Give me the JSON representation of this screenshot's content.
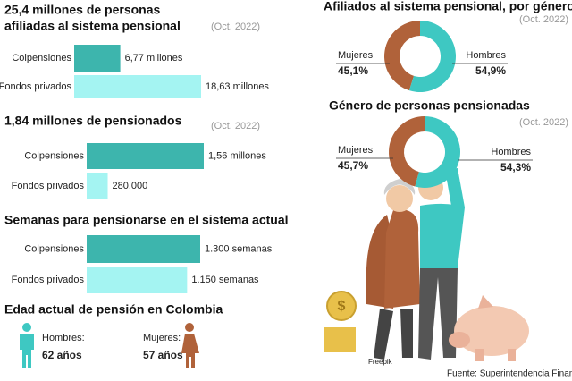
{
  "chart_data": [
    {
      "type": "bar",
      "title_lines": [
        "25,4 millones de personas",
        "afiliadas al sistema pensional"
      ],
      "note": "(Oct. 2022)",
      "categories": [
        "Colpensiones",
        "Fondos privados"
      ],
      "values": [
        6770000,
        18630000
      ],
      "value_labels": [
        "6,77 millones",
        "18,63 millones"
      ],
      "colors": [
        "#3db5ad",
        "#a4f4f2"
      ]
    },
    {
      "type": "bar",
      "title_lines": [
        "1,84 millones de pensionados"
      ],
      "note": "(Oct. 2022)",
      "categories": [
        "Colpensiones",
        "Fondos privados"
      ],
      "values": [
        1560000,
        280000
      ],
      "value_labels": [
        "1,56 millones",
        "280.000"
      ],
      "colors": [
        "#3db5ad",
        "#a4f4f2"
      ]
    },
    {
      "type": "bar",
      "title_lines": [
        "Semanas para pensionarse en el sistema actual"
      ],
      "categories": [
        "Colpensiones",
        "Fondos privados"
      ],
      "values": [
        1300,
        1150
      ],
      "value_labels": [
        "1.300 semanas",
        "1.150 semanas"
      ],
      "colors": [
        "#3db5ad",
        "#a4f4f2"
      ]
    },
    {
      "type": "pie",
      "title_lines": [
        "Afiliados al sistema pensional, por género"
      ],
      "note": "(Oct. 2022)",
      "categories": [
        "Mujeres",
        "Hombres"
      ],
      "values": [
        45.1,
        54.9
      ],
      "value_labels": [
        "45,1%",
        "54,9%"
      ],
      "colors": [
        "#b0623a",
        "#3ec8c2"
      ]
    },
    {
      "type": "pie",
      "title_lines": [
        "Género de personas pensionadas"
      ],
      "note": "(Oct. 2022)",
      "categories": [
        "Mujeres",
        "Hombres"
      ],
      "values": [
        45.7,
        54.3
      ],
      "value_labels": [
        "45,7%",
        "54,3%"
      ],
      "colors": [
        "#b0623a",
        "#3ec8c2"
      ]
    }
  ],
  "retirement_age": {
    "title": "Edad actual de pensión en Colombia",
    "items": [
      {
        "label": "Hombres:",
        "value": "62 años",
        "color": "#3ec8c2"
      },
      {
        "label": "Mujeres:",
        "value": "57 años",
        "color": "#b0623a"
      }
    ]
  },
  "credits": {
    "image": "Freepik",
    "source": "Fuente: Superintendencia Financiera"
  }
}
